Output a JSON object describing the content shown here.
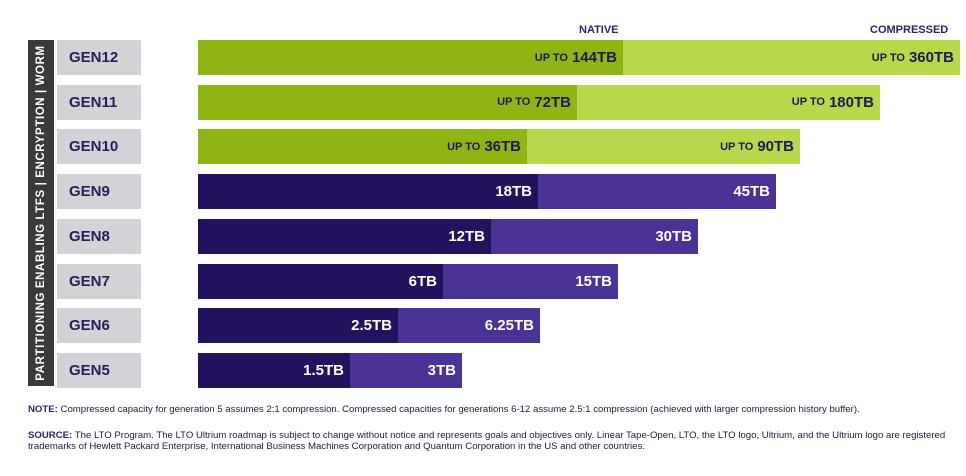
{
  "legend": {
    "native": "NATIVE",
    "compressed": "COMPRESSED"
  },
  "side_label": "PARTITIONING ENABLING LTFS  |  ENCRYPTION  |  WORM",
  "colors": {
    "green_native": "#8fb514",
    "green_compressed": "#b7d84a",
    "purple_native": "#24125f",
    "purple_compressed": "#4a3296",
    "gen_label_bg": "#d2d3d7",
    "side_bar_bg": "#3a3a3a"
  },
  "chart_data": {
    "type": "bar",
    "orientation": "horizontal",
    "unit": "TB",
    "categories": [
      "GEN12",
      "GEN11",
      "GEN10",
      "GEN9",
      "GEN8",
      "GEN7",
      "GEN6",
      "GEN5"
    ],
    "series": [
      {
        "name": "NATIVE",
        "values": [
          144,
          72,
          36,
          18,
          12,
          6,
          2.5,
          1.5
        ],
        "labels": [
          "UP TO|144TB",
          "UP TO|72TB",
          "UP TO|36TB",
          "18TB",
          "12TB",
          "6TB",
          "2.5TB",
          "1.5TB"
        ]
      },
      {
        "name": "COMPRESSED",
        "values": [
          360,
          180,
          90,
          45,
          30,
          15,
          6.25,
          3
        ],
        "labels": [
          "UP TO|360TB",
          "UP TO|180TB",
          "UP TO|90TB",
          "45TB",
          "30TB",
          "15TB",
          "6.25TB",
          "3TB"
        ]
      }
    ],
    "row_style": [
      "green",
      "green",
      "green",
      "purple",
      "purple",
      "purple",
      "purple",
      "purple"
    ]
  },
  "footnotes": {
    "note_label": "NOTE:",
    "note_text": "Compressed capacity for generation 5 assumes 2:1 compression. Compressed capacities for generations 6-12 assume 2.5:1 compression (achieved with larger compression history buffer).",
    "source_label": "SOURCE:",
    "source_text": "The LTO Program. The LTO Ultrium roadmap is subject to change without notice and represents goals and objectives only. Linear Tape-Open, LTO, the LTO logo, Ultrium, and the Ultrium logo are registered trademarks of Hewlett Packard Enterprise, International Business Machines Corporation and Quantum Corporation in the US and other countries."
  }
}
